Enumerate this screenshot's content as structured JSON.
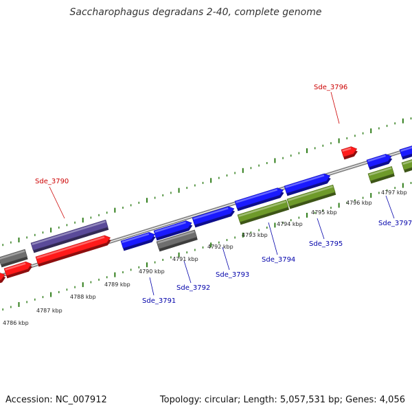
{
  "title": "Saccharophagus degradans 2-40, complete genome",
  "footer": {
    "accession": "Accession: NC_007912",
    "summary": "Topology: circular; Length: 5,057,531 bp; Genes: 4,056"
  },
  "colors": {
    "backbone": "#888888",
    "ticks": "#2f7d19",
    "forward_label": "#cc0000",
    "reverse_label": "#0000aa",
    "red_gene": "#ff1a1a",
    "purple_gene": "#5a4a99",
    "blue_gene": "#1a1aff",
    "gray_gene": "#6e6e6e",
    "green_gene": "#6e9a2a"
  },
  "kbp_labels": [
    "4786 kbp",
    "4787 kbp",
    "4788 kbp",
    "4789 kbp",
    "4790 kbp",
    "4791 kbp",
    "4792 kbp",
    "4793 kbp",
    "4794 kbp",
    "4795 kbp",
    "4796 kbp",
    "4797 kbp"
  ],
  "gene_labels": {
    "sde_3790": "Sde_3790",
    "sde_3791": "Sde_3791",
    "sde_3792": "Sde_3792",
    "sde_3793": "Sde_3793",
    "sde_3794": "Sde_3794",
    "sde_3795": "Sde_3795",
    "sde_3796": "Sde_3796",
    "sde_3797": "Sde_3797"
  }
}
